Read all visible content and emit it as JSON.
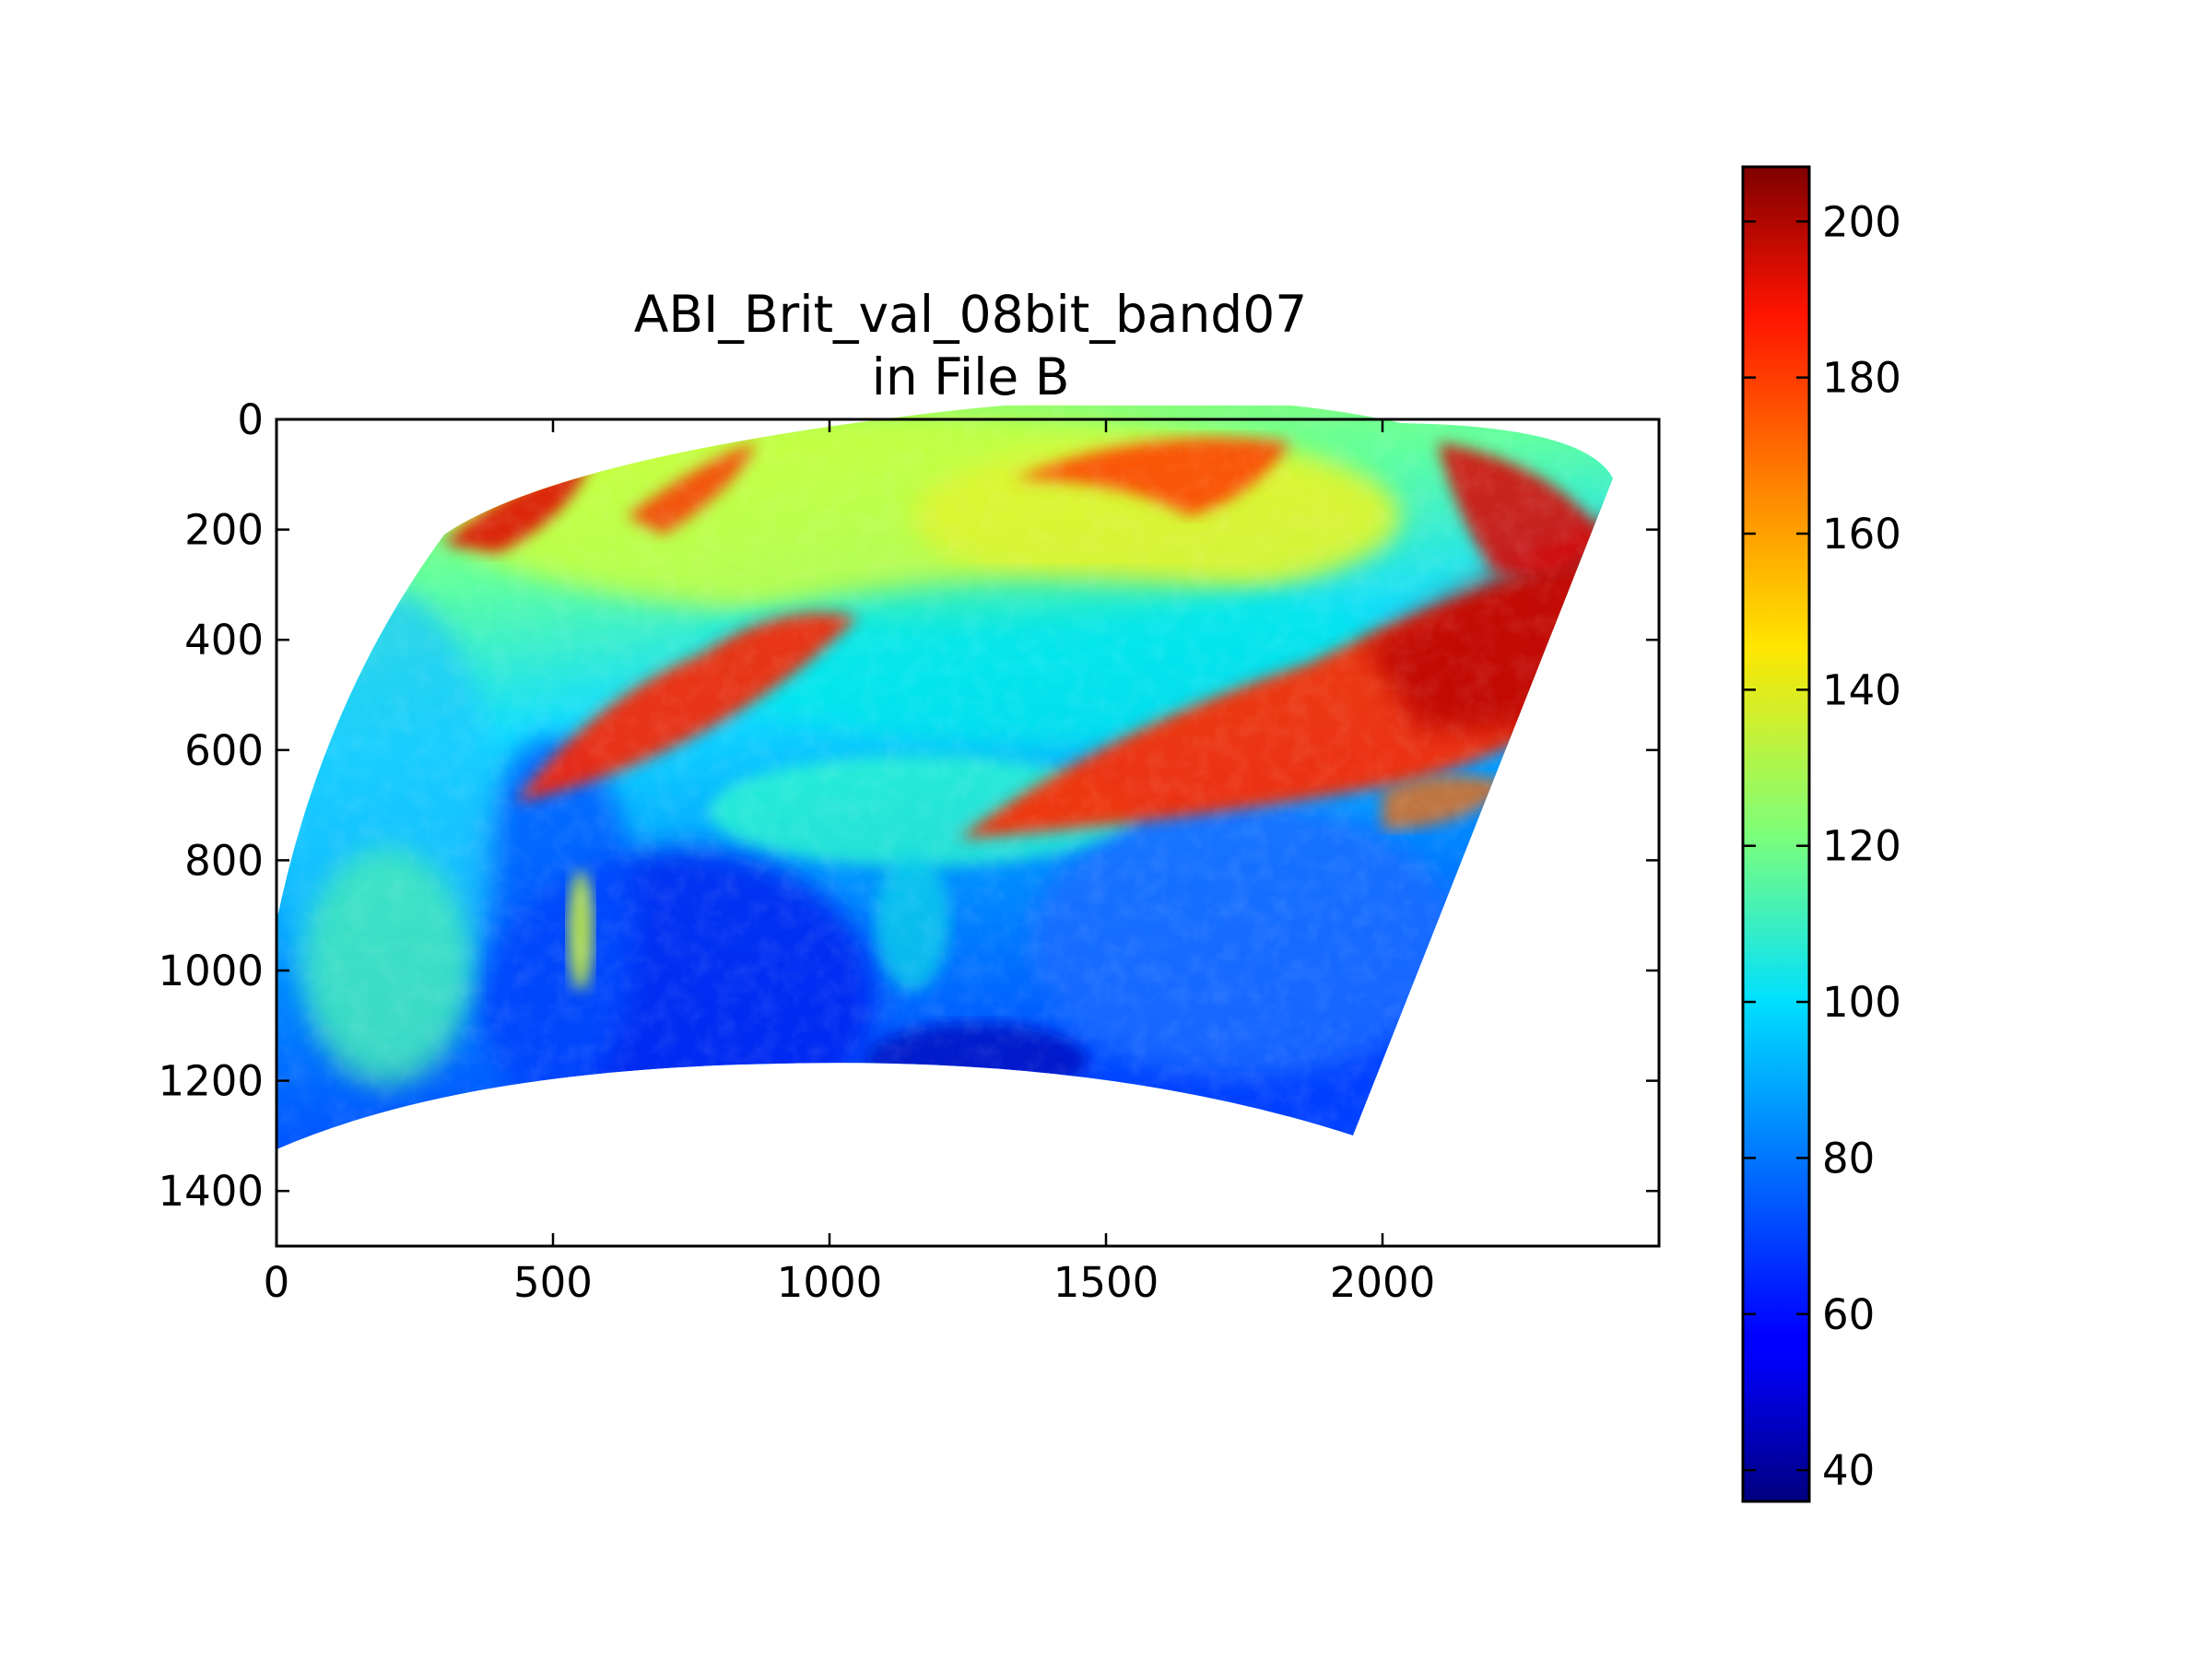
{
  "chart_data": {
    "type": "heatmap",
    "title": "ABI_Brit_val_08bit_band07\nin File B",
    "title_lines": [
      "ABI_Brit_val_08bit_band07",
      "in File B"
    ],
    "xlabel": "",
    "ylabel": "",
    "xlim": [
      0,
      2500
    ],
    "ylim": [
      1500,
      0
    ],
    "y_inverted": true,
    "grid": false,
    "x_ticks": [
      0,
      500,
      1000,
      1500,
      2000
    ],
    "x_tick_labels": [
      "0",
      "500",
      "1000",
      "1500",
      "2000"
    ],
    "y_ticks": [
      0,
      200,
      400,
      600,
      800,
      1000,
      1200,
      1400
    ],
    "y_tick_labels": [
      "0",
      "200",
      "400",
      "600",
      "800",
      "1000",
      "1200",
      "1400"
    ],
    "colormap": "jet",
    "colorbar": {
      "range": [
        36,
        207
      ],
      "ticks": [
        40,
        60,
        80,
        100,
        120,
        140,
        160,
        180,
        200
      ],
      "tick_labels": [
        "40",
        "60",
        "80",
        "100",
        "120",
        "140",
        "160",
        "180",
        "200"
      ],
      "placement": "right"
    },
    "data_footprint": {
      "description_units": "column, row",
      "corners": {
        "top_left": [
          310,
          205
        ],
        "top_middle": [
          1000,
          0
        ],
        "top_right": [
          2385,
          105
        ],
        "right_bottom": [
          1935,
          1290
        ],
        "bottom_middle": [
          900,
          1150
        ],
        "bottom_left": [
          0,
          1310
        ]
      }
    },
    "features": [
      {
        "region": "upper-right frontal cloud band",
        "value": 195
      },
      {
        "region": "cloud band near (700, 450)",
        "value": 185
      },
      {
        "region": "northern clouds near (1500, 100)",
        "value": 190
      },
      {
        "region": "upper-left edge clouds",
        "value": 190
      },
      {
        "region": "central area near (1200, 400)",
        "value": 115
      },
      {
        "region": "upper-middle area near (1000, 150)",
        "value": 140
      },
      {
        "region": "southern ocean near (700, 1100)",
        "value": 62
      },
      {
        "region": "lower-right ocean near (1700, 1000)",
        "value": 72
      },
      {
        "region": "left-side ocean near (200, 900)",
        "value": 92
      }
    ]
  }
}
